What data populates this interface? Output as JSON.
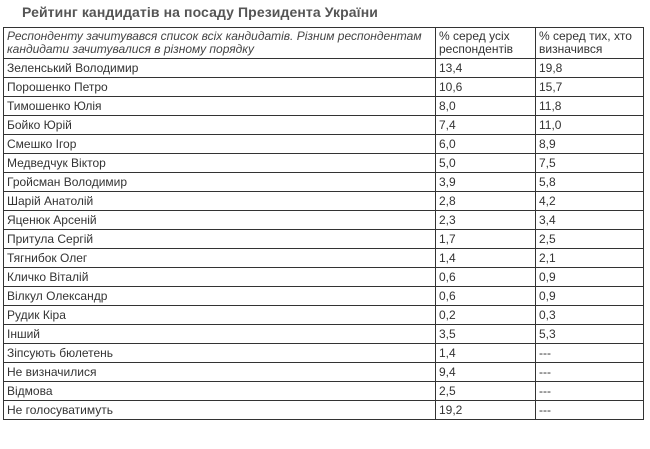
{
  "title": "Рейтинг кандидатів на посаду Президента України",
  "table": {
    "headers": [
      "Респонденту зачитувався список всіх кандидатів. Різним респондентам кандидати зачитувалися в різному порядку",
      "% серед усіх респондентів",
      "% серед тих, хто визначився"
    ],
    "rows": [
      [
        "Зеленський Володимир",
        "13,4",
        "19,8"
      ],
      [
        "Порошенко Петро",
        "10,6",
        "15,7"
      ],
      [
        "Тимошенко Юлія",
        "8,0",
        "11,8"
      ],
      [
        "Бойко Юрій",
        "7,4",
        "11,0"
      ],
      [
        "Смешко Ігор",
        "6,0",
        "8,9"
      ],
      [
        "Медведчук Віктор",
        "5,0",
        "7,5"
      ],
      [
        "Гройсман Володимир",
        "3,9",
        "5,8"
      ],
      [
        "Шарій Анатолій",
        "2,8",
        "4,2"
      ],
      [
        "Яценюк Арсеній",
        "2,3",
        "3,4"
      ],
      [
        "Притула Сергій",
        "1,7",
        "2,5"
      ],
      [
        "Тягнибок Олег",
        "1,4",
        "2,1"
      ],
      [
        "Кличко Віталій",
        "0,6",
        "0,9"
      ],
      [
        "Вілкул Олександр",
        "0,6",
        "0,9"
      ],
      [
        "Рудик Кіра",
        "0,2",
        "0,3"
      ],
      [
        "Інший",
        "3,5",
        "5,3"
      ],
      [
        "Зіпсують бюлетень",
        "1,4",
        "---"
      ],
      [
        "Не визначилися",
        "9,4",
        "---"
      ],
      [
        "Відмова",
        "2,5",
        "---"
      ],
      [
        "Не голосуватимуть",
        "19,2",
        "---"
      ]
    ]
  }
}
